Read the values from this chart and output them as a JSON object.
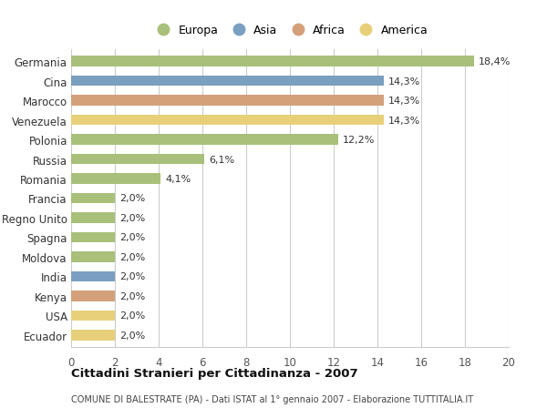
{
  "countries": [
    "Germania",
    "Cina",
    "Marocco",
    "Venezuela",
    "Polonia",
    "Russia",
    "Romania",
    "Francia",
    "Regno Unito",
    "Spagna",
    "Moldova",
    "India",
    "Kenya",
    "USA",
    "Ecuador"
  ],
  "values": [
    18.4,
    14.3,
    14.3,
    14.3,
    12.2,
    6.1,
    4.1,
    2.0,
    2.0,
    2.0,
    2.0,
    2.0,
    2.0,
    2.0,
    2.0
  ],
  "labels": [
    "18,4%",
    "14,3%",
    "14,3%",
    "14,3%",
    "12,2%",
    "6,1%",
    "4,1%",
    "2,0%",
    "2,0%",
    "2,0%",
    "2,0%",
    "2,0%",
    "2,0%",
    "2,0%",
    "2,0%"
  ],
  "continents": [
    "Europa",
    "Asia",
    "Africa",
    "America",
    "Europa",
    "Europa",
    "Europa",
    "Europa",
    "Europa",
    "Europa",
    "Europa",
    "Asia",
    "Africa",
    "America",
    "America"
  ],
  "colors": {
    "Europa": "#a8c07a",
    "Asia": "#7a9fc0",
    "Africa": "#d4a07a",
    "America": "#e8d07a"
  },
  "legend_order": [
    "Europa",
    "Asia",
    "Africa",
    "America"
  ],
  "title": "Cittadini Stranieri per Cittadinanza - 2007",
  "subtitle": "COMUNE DI BALESTRATE (PA) - Dati ISTAT al 1° gennaio 2007 - Elaborazione TUTTITALIA.IT",
  "xlim": [
    0,
    20
  ],
  "xticks": [
    0,
    2,
    4,
    6,
    8,
    10,
    12,
    14,
    16,
    18,
    20
  ],
  "bg_color": "#ffffff",
  "grid_color": "#cccccc",
  "bar_height": 0.55
}
